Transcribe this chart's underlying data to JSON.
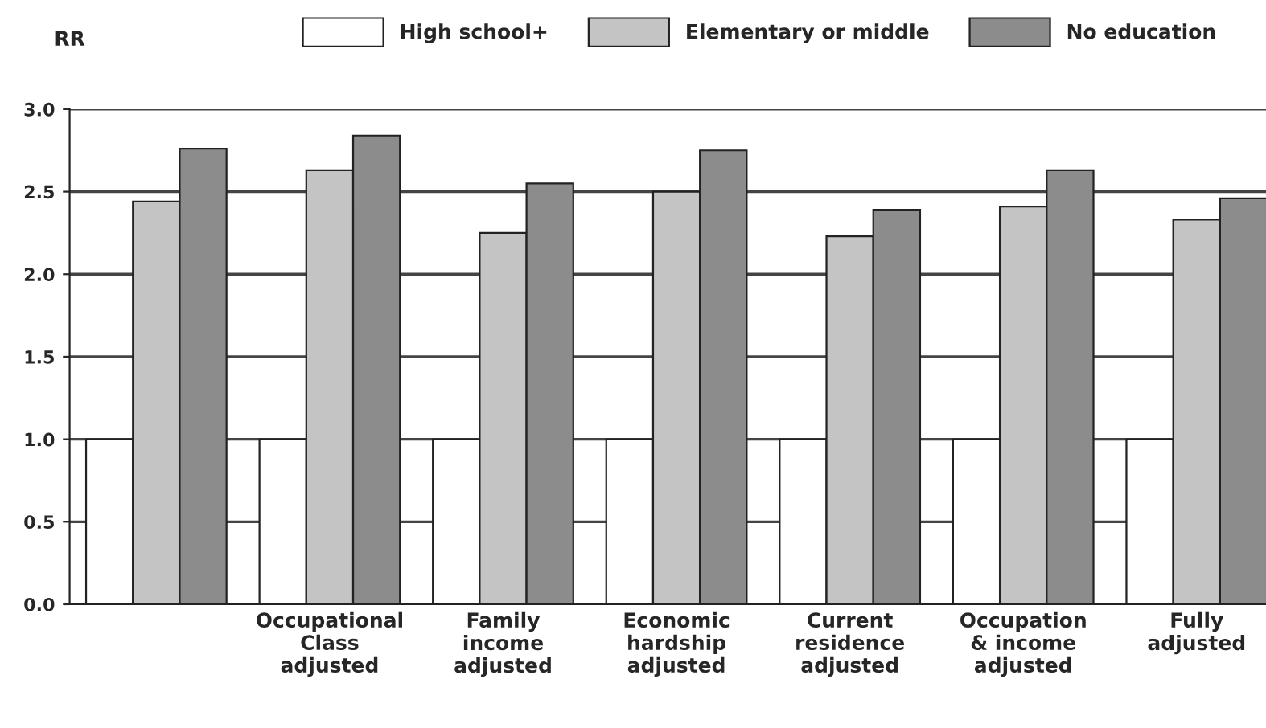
{
  "chart_data": {
    "type": "bar",
    "ylabel": "RR",
    "categories": [
      null,
      "Occupational\nClass\nadjusted",
      "Family\nincome\nadjusted",
      "Economic\nhardship\nadjusted",
      "Current\nresidence\nadjusted",
      "Occupation\n& income\nadjusted",
      "Fully\nadjusted"
    ],
    "series": [
      {
        "name": "High school+",
        "color": "#ffffff",
        "values": [
          1.0,
          1.0,
          1.0,
          1.0,
          1.0,
          1.0,
          1.0
        ]
      },
      {
        "name": "Elementary or middle",
        "color": "#c4c4c4",
        "values": [
          2.44,
          2.63,
          2.25,
          2.5,
          2.23,
          2.41,
          2.33
        ]
      },
      {
        "name": "No education",
        "color": "#8c8c8c",
        "values": [
          2.76,
          2.84,
          2.55,
          2.75,
          2.39,
          2.63,
          2.46
        ]
      }
    ],
    "ylim": [
      0,
      3
    ],
    "yticks": [
      {
        "value": 0,
        "label": "0.0"
      },
      {
        "value": 0.5,
        "label": "0.5"
      },
      {
        "value": 1,
        "label": "1.0"
      },
      {
        "value": 1.5,
        "label": "1.5"
      },
      {
        "value": 2,
        "label": "2.0"
      },
      {
        "value": 2.5,
        "label": "2.5"
      },
      {
        "value": 3,
        "label": "3.0"
      }
    ],
    "grid": "y",
    "legend": "top"
  }
}
